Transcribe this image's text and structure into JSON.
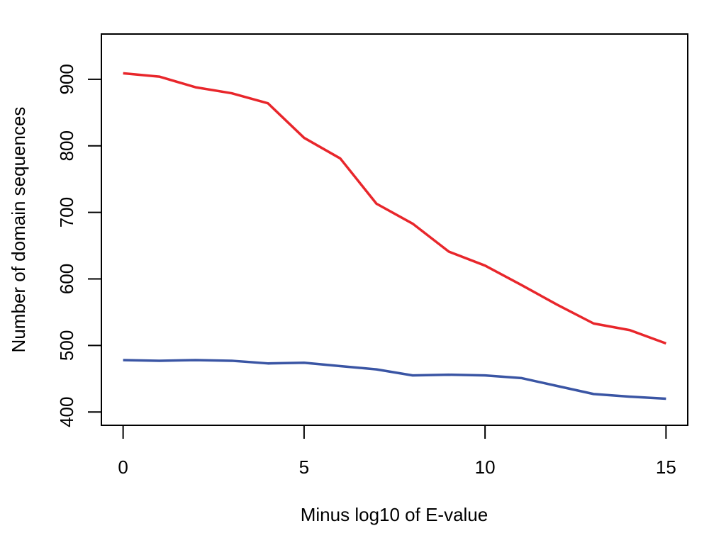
{
  "chart_data": {
    "type": "line",
    "title": "",
    "xlabel": "Minus log10 of E-value",
    "ylabel": "Number of domain sequences",
    "xlim": [
      -0.6,
      15.6
    ],
    "ylim": [
      380,
      968
    ],
    "x_ticks": [
      0,
      5,
      10,
      15
    ],
    "x_tick_labels": [
      "0",
      "5",
      "10",
      "15"
    ],
    "y_ticks": [
      400,
      500,
      600,
      700,
      800,
      900
    ],
    "y_tick_labels": [
      "400",
      "500",
      "600",
      "700",
      "800",
      "900"
    ],
    "grid": false,
    "legend": "none",
    "x": [
      0,
      1,
      2,
      3,
      4,
      5,
      6,
      7,
      8,
      9,
      10,
      11,
      12,
      13,
      14,
      15
    ],
    "series": [
      {
        "name": "red series",
        "color": "#e8262b",
        "values": [
          909,
          904,
          888,
          879,
          864,
          812,
          781,
          713,
          683,
          641,
          620,
          591,
          561,
          533,
          523,
          503
        ]
      },
      {
        "name": "blue series",
        "color": "#3a55a4",
        "values": [
          478,
          477,
          478,
          477,
          473,
          474,
          469,
          464,
          455,
          456,
          455,
          451,
          439,
          427,
          423,
          420
        ]
      }
    ]
  }
}
